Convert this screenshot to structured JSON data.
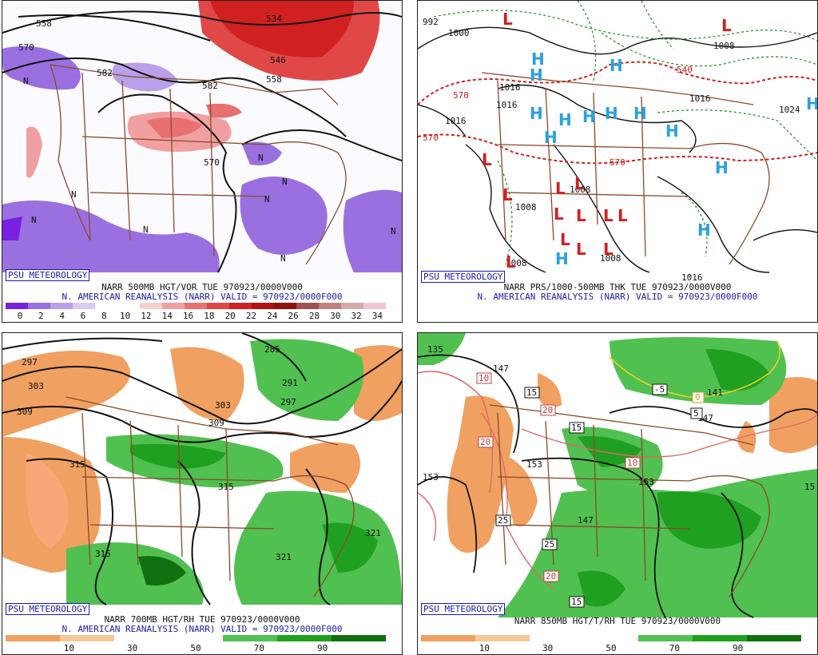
{
  "brand": "PSU METEOROLOGY",
  "panels": {
    "p500": {
      "caption1": "NARR 500MB HGT/VOR TUE 970923/0000V000",
      "caption2": "N. AMERICAN REANALYSIS (NARR) VALID = 970923/0000F000",
      "colorbar_ticks": [
        "0",
        "2",
        "4",
        "6",
        "8",
        "10",
        "12",
        "14",
        "16",
        "18",
        "20",
        "22",
        "24",
        "26",
        "28",
        "30",
        "32",
        "34"
      ],
      "colorbar_colors": [
        "#7a20e0",
        "#9a70e0",
        "#b8a0ea",
        "#d8ccf4",
        "#ffffff",
        "#ffffff",
        "#f6d0d0",
        "#f0a0a0",
        "#e87070",
        "#e04848",
        "#d02020",
        "#b01010",
        "#901010",
        "#a05050",
        "#c08080",
        "#d8a8a8",
        "#f0c8d0"
      ],
      "contour_labels": [
        "558",
        "570",
        "582",
        "534",
        "546",
        "558",
        "582",
        "570"
      ],
      "marker": "N"
    },
    "thk": {
      "caption1": "NARR PRS/1000-500MB THK TUE 970923/0000V000",
      "caption2": "N. AMERICAN REANALYSIS (NARR) VALID = 970923/0000F000",
      "pressure_labels": [
        "1000",
        "1016",
        "1016",
        "1016",
        "1008",
        "1008",
        "1008",
        "1008",
        "1016",
        "1024",
        "1008",
        "1016",
        "992",
        "540",
        "570",
        "570",
        "570"
      ],
      "high": "H",
      "low": "L"
    },
    "p700": {
      "caption1": "NARR 700MB HGT/RH TUE 970923/0000V000",
      "caption2": "N. AMERICAN REANALYSIS (NARR) VALID = 970923/0000F000",
      "colorbar_ticks": [
        "10",
        "30",
        "50",
        "70",
        "90"
      ],
      "colorbar_colors": [
        "#f0a060",
        "#f8c898",
        "#ffffff",
        "#ffffff",
        "#50c050",
        "#20a020",
        "#107010"
      ],
      "contour_labels": [
        "285",
        "291",
        "297",
        "297",
        "303",
        "309",
        "309",
        "303",
        "315",
        "315",
        "315",
        "321",
        "321"
      ]
    },
    "p850": {
      "caption1": "NARR 850MB HGT/T/RH TUE 970923/0000V000",
      "colorbar_ticks": [
        "10",
        "30",
        "50",
        "70",
        "90"
      ],
      "colorbar_colors": [
        "#f0a060",
        "#f8c898",
        "#ffffff",
        "#ffffff",
        "#50c050",
        "#20a020",
        "#107010"
      ],
      "contour_labels": [
        "135",
        "147",
        "141",
        "153",
        "153",
        "147",
        "153",
        "147",
        "15"
      ],
      "temp_labels": [
        "10",
        "15",
        "20",
        "15",
        "20",
        "10",
        "25",
        "25",
        "20",
        "15",
        "-5",
        "0",
        "5"
      ]
    }
  }
}
